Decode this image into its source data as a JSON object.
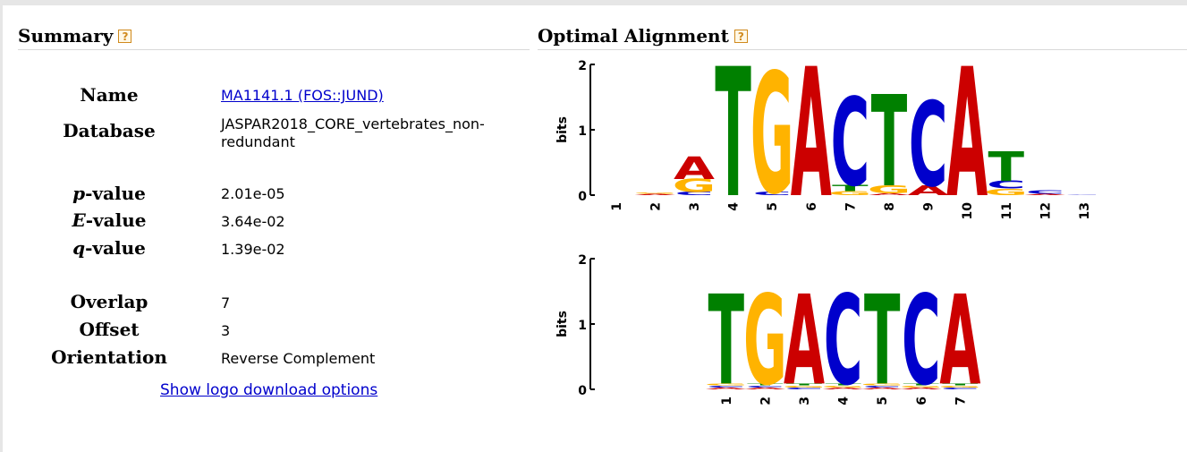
{
  "summary": {
    "title": "Summary",
    "help_symbol": "?",
    "rows": {
      "name": {
        "label": "Name",
        "value": "MA1141.1 (FOS::JUND)"
      },
      "database": {
        "label": "Database",
        "value": "JASPAR2018_CORE_vertebrates_non-redundant"
      },
      "pvalue": {
        "label_italic": "p",
        "label_rest": "-value",
        "value": "2.01e-05"
      },
      "evalue": {
        "label_italic": "E",
        "label_rest": "-value",
        "value": "3.64e-02"
      },
      "qvalue": {
        "label_italic": "q",
        "label_rest": "-value",
        "value": "1.39e-02"
      },
      "overlap": {
        "label": "Overlap",
        "value": "7"
      },
      "offset": {
        "label": "Offset",
        "value": "3"
      },
      "orientation": {
        "label": "Orientation",
        "value": "Reverse Complement"
      }
    },
    "download_link": "Show logo download options"
  },
  "alignment": {
    "title": "Optimal Alignment",
    "help_symbol": "?"
  },
  "colors": {
    "A": "#cc0000",
    "C": "#0000cc",
    "G": "#ffb300",
    "T": "#008000",
    "help_border": "#d08a1d",
    "link": "#0000cc"
  },
  "chart_data": [
    {
      "type": "sequence_logo",
      "ylabel": "bits",
      "ylim": [
        0,
        2
      ],
      "yticks": [
        "0",
        "1",
        "2"
      ],
      "positions": [
        "1",
        "2",
        "3",
        "4",
        "5",
        "6",
        "7",
        "8",
        "9",
        "10",
        "11",
        "12",
        "13"
      ],
      "stacks": [
        [],
        [
          {
            "base": "A",
            "bits": 0.02
          },
          {
            "base": "G",
            "bits": 0.02
          }
        ],
        [
          {
            "base": "C",
            "bits": 0.05
          },
          {
            "base": "G",
            "bits": 0.2
          },
          {
            "base": "A",
            "bits": 0.35
          }
        ],
        [
          {
            "base": "T",
            "bits": 1.98
          }
        ],
        [
          {
            "base": "C",
            "bits": 0.05
          },
          {
            "base": "G",
            "bits": 1.85
          }
        ],
        [
          {
            "base": "A",
            "bits": 1.98
          }
        ],
        [
          {
            "base": "G",
            "bits": 0.06
          },
          {
            "base": "T",
            "bits": 0.1
          },
          {
            "base": "C",
            "bits": 1.35
          }
        ],
        [
          {
            "base": "A",
            "bits": 0.03
          },
          {
            "base": "G",
            "bits": 0.12
          },
          {
            "base": "T",
            "bits": 1.4
          }
        ],
        [
          {
            "base": "A",
            "bits": 0.15
          },
          {
            "base": "C",
            "bits": 1.3
          }
        ],
        [
          {
            "base": "A",
            "bits": 1.98
          }
        ],
        [
          {
            "base": "G",
            "bits": 0.1
          },
          {
            "base": "C",
            "bits": 0.12
          },
          {
            "base": "T",
            "bits": 0.45
          }
        ],
        [
          {
            "base": "A",
            "bits": 0.02
          },
          {
            "base": "C",
            "bits": 0.05
          }
        ],
        [
          {
            "base": "C",
            "bits": 0.01
          }
        ]
      ]
    },
    {
      "type": "sequence_logo",
      "ylabel": "bits",
      "ylim": [
        0,
        2
      ],
      "yticks": [
        "0",
        "1",
        "2"
      ],
      "positions": [
        "1",
        "2",
        "3",
        "4",
        "5",
        "6",
        "7"
      ],
      "stacks": [
        [
          {
            "base": "A",
            "bits": 0.03
          },
          {
            "base": "C",
            "bits": 0.03
          },
          {
            "base": "G",
            "bits": 0.03
          },
          {
            "base": "T",
            "bits": 1.38
          }
        ],
        [
          {
            "base": "A",
            "bits": 0.03
          },
          {
            "base": "C",
            "bits": 0.03
          },
          {
            "base": "T",
            "bits": 0.03
          },
          {
            "base": "G",
            "bits": 1.38
          }
        ],
        [
          {
            "base": "C",
            "bits": 0.03
          },
          {
            "base": "G",
            "bits": 0.03
          },
          {
            "base": "T",
            "bits": 0.03
          },
          {
            "base": "A",
            "bits": 1.38
          }
        ],
        [
          {
            "base": "A",
            "bits": 0.03
          },
          {
            "base": "G",
            "bits": 0.03
          },
          {
            "base": "T",
            "bits": 0.03
          },
          {
            "base": "C",
            "bits": 1.38
          }
        ],
        [
          {
            "base": "A",
            "bits": 0.03
          },
          {
            "base": "C",
            "bits": 0.03
          },
          {
            "base": "G",
            "bits": 0.03
          },
          {
            "base": "T",
            "bits": 1.38
          }
        ],
        [
          {
            "base": "A",
            "bits": 0.03
          },
          {
            "base": "G",
            "bits": 0.03
          },
          {
            "base": "T",
            "bits": 0.03
          },
          {
            "base": "C",
            "bits": 1.38
          }
        ],
        [
          {
            "base": "C",
            "bits": 0.03
          },
          {
            "base": "G",
            "bits": 0.03
          },
          {
            "base": "T",
            "bits": 0.03
          },
          {
            "base": "A",
            "bits": 1.38
          }
        ]
      ]
    }
  ]
}
